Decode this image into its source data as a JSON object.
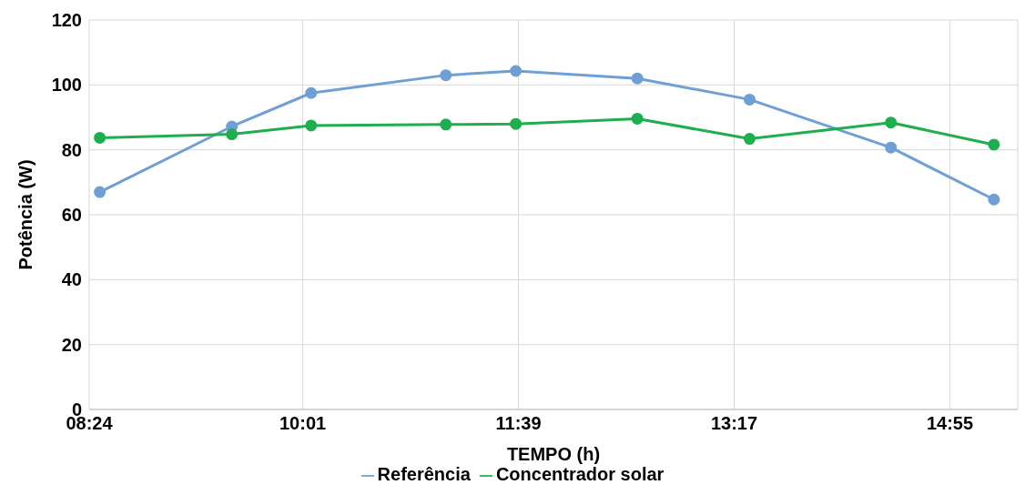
{
  "chart_data": {
    "type": "line",
    "xlabel": "TEMPO (h)",
    "ylabel": "Potência (W)",
    "x": [
      8.48,
      9.48,
      10.08,
      11.1,
      11.63,
      12.55,
      13.4,
      14.47,
      15.25
    ],
    "series": [
      {
        "name": "Referência",
        "color": "#6f9fd4",
        "values": [
          67,
          87.2,
          97.5,
          103,
          104.3,
          102,
          95.5,
          80.7,
          64.7
        ]
      },
      {
        "name": "Concentrador solar",
        "color": "#1fae4e",
        "values": [
          83.7,
          84.8,
          87.5,
          87.8,
          88,
          89.6,
          83.4,
          88.4,
          81.6
        ]
      }
    ],
    "xlim": [
      8.4,
      15.43
    ],
    "xticks": [
      {
        "value": 8.4,
        "label": "08:24"
      },
      {
        "value": 10.0167,
        "label": "10:01"
      },
      {
        "value": 11.65,
        "label": "11:39"
      },
      {
        "value": 13.2833,
        "label": "13:17"
      },
      {
        "value": 14.9167,
        "label": "14:55"
      }
    ],
    "ylim": [
      0,
      120
    ],
    "yticks": [
      0,
      20,
      40,
      60,
      80,
      100,
      120
    ],
    "grid": true,
    "legend": "bottom",
    "marker": "circle",
    "line_style": "solid"
  }
}
